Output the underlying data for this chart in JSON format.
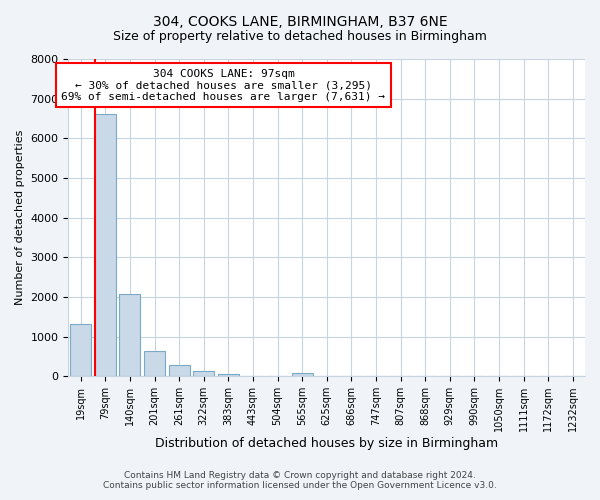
{
  "title": "304, COOKS LANE, BIRMINGHAM, B37 6NE",
  "subtitle": "Size of property relative to detached houses in Birmingham",
  "xlabel": "Distribution of detached houses by size in Birmingham",
  "ylabel": "Number of detached properties",
  "bin_labels": [
    "19sqm",
    "79sqm",
    "140sqm",
    "201sqm",
    "261sqm",
    "322sqm",
    "383sqm",
    "443sqm",
    "504sqm",
    "565sqm",
    "625sqm",
    "686sqm",
    "747sqm",
    "807sqm",
    "868sqm",
    "929sqm",
    "990sqm",
    "1050sqm",
    "1111sqm",
    "1172sqm",
    "1232sqm"
  ],
  "bar_heights": [
    1320,
    6620,
    2080,
    640,
    295,
    140,
    60,
    0,
    0,
    70,
    0,
    0,
    0,
    0,
    0,
    0,
    0,
    0,
    0,
    0,
    0
  ],
  "bar_color": "#c9d9e8",
  "bar_edgecolor": "#7aaac8",
  "annotation_line1": "304 COOKS LANE: 97sqm",
  "annotation_line2": "← 30% of detached houses are smaller (3,295)",
  "annotation_line3": "69% of semi-detached houses are larger (7,631) →",
  "annotation_box_color": "white",
  "annotation_box_edgecolor": "red",
  "vline_color": "red",
  "ylim": [
    0,
    8000
  ],
  "yticks": [
    0,
    1000,
    2000,
    3000,
    4000,
    5000,
    6000,
    7000,
    8000
  ],
  "footer1": "Contains HM Land Registry data © Crown copyright and database right 2024.",
  "footer2": "Contains public sector information licensed under the Open Government Licence v3.0.",
  "bg_color": "#f0f4f8",
  "plot_bg_color": "white",
  "grid_color": "#c8d4e0",
  "title_fontsize": 10,
  "subtitle_fontsize": 9
}
